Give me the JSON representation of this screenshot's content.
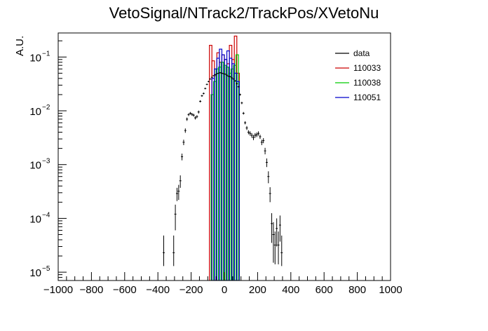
{
  "chart_data": {
    "type": "histogram",
    "title": "VetoSignal/NTrack2/TrackPos/XVetoNu",
    "ylabel": "A.U.",
    "xlabel": "",
    "xlim": [
      -1000,
      1000
    ],
    "ylim": [
      7e-06,
      0.28
    ],
    "yscale": "log",
    "xticks": [
      -1000,
      -800,
      -600,
      -400,
      -200,
      0,
      200,
      400,
      600,
      800,
      1000
    ],
    "xtick_labels": [
      "−1000",
      "−800",
      "−600",
      "−400",
      "−200",
      "0",
      "200",
      "400",
      "600",
      "800",
      "1000"
    ],
    "yticks": [
      1e-05,
      0.0001,
      0.001,
      0.01,
      0.1
    ],
    "ytick_labels": [
      {
        "base": "10",
        "exp": "−5"
      },
      {
        "base": "10",
        "exp": "−4"
      },
      {
        "base": "10",
        "exp": "−3"
      },
      {
        "base": "10",
        "exp": "−2"
      },
      {
        "base": "10",
        "exp": "−1"
      }
    ],
    "grid": false,
    "legend_position": "top-right",
    "legend": [
      {
        "label": "data",
        "color": "#000000"
      },
      {
        "label": "110033",
        "color": "#cc0000"
      },
      {
        "label": "110038",
        "color": "#00cc00"
      },
      {
        "label": "110051",
        "color": "#0000cc"
      }
    ],
    "series": [
      {
        "name": "data",
        "style": "points-with-errors",
        "color": "#000000",
        "points": [
          {
            "x": -365,
            "y": 2.3e-05,
            "yerr": [
              1e-05,
              2.5e-05
            ]
          },
          {
            "x": -305,
            "y": 2.3e-05,
            "yerr": [
              1e-05,
              2.5e-05
            ]
          },
          {
            "x": -295,
            "y": 0.00012,
            "yerr": [
              6e-05,
              6e-05
            ]
          },
          {
            "x": -285,
            "y": 0.00029,
            "yerr": [
              8e-05,
              8e-05
            ]
          },
          {
            "x": -275,
            "y": 0.00032,
            "yerr": [
              0.0001,
              0.0001
            ]
          },
          {
            "x": -265,
            "y": 0.0005,
            "yerr": [
              0.00013,
              0.00013
            ]
          },
          {
            "x": -255,
            "y": 0.0014,
            "yerr": [
              0.0002,
              0.0002
            ]
          },
          {
            "x": -245,
            "y": 0.0026,
            "yerr": [
              0.0003,
              0.0003
            ]
          },
          {
            "x": -235,
            "y": 0.0043,
            "yerr": [
              0.0004,
              0.0004
            ]
          },
          {
            "x": -225,
            "y": 0.007,
            "yerr": [
              0.0005,
              0.0005
            ]
          },
          {
            "x": -215,
            "y": 0.0085,
            "yerr": [
              0.0005,
              0.0005
            ]
          },
          {
            "x": -205,
            "y": 0.009,
            "yerr": [
              0.0005,
              0.0005
            ]
          },
          {
            "x": -195,
            "y": 0.0086,
            "yerr": [
              0.0005,
              0.0005
            ]
          },
          {
            "x": -185,
            "y": 0.0083,
            "yerr": [
              0.0005,
              0.0005
            ]
          },
          {
            "x": -175,
            "y": 0.0074,
            "yerr": [
              0.0005,
              0.0005
            ]
          },
          {
            "x": -165,
            "y": 0.0078,
            "yerr": [
              0.0005,
              0.0005
            ]
          },
          {
            "x": -155,
            "y": 0.0095,
            "yerr": [
              0.0006,
              0.0006
            ]
          },
          {
            "x": -145,
            "y": 0.015,
            "yerr": [
              0.0007,
              0.0007
            ]
          },
          {
            "x": -135,
            "y": 0.019,
            "yerr": [
              0.0008,
              0.0008
            ]
          },
          {
            "x": -125,
            "y": 0.021,
            "yerr": [
              0.0008,
              0.0008
            ]
          },
          {
            "x": -115,
            "y": 0.026,
            "yerr": [
              0.0009,
              0.0009
            ]
          },
          {
            "x": -105,
            "y": 0.031,
            "yerr": [
              0.001,
              0.001
            ]
          },
          {
            "x": -95,
            "y": 0.035,
            "yerr": [
              0.001,
              0.001
            ]
          },
          {
            "x": -85,
            "y": 0.039,
            "yerr": [
              0.001,
              0.001
            ]
          },
          {
            "x": -75,
            "y": 0.042,
            "yerr": [
              0.001,
              0.001
            ]
          },
          {
            "x": -65,
            "y": 0.045,
            "yerr": [
              0.001,
              0.001
            ]
          },
          {
            "x": -55,
            "y": 0.047,
            "yerr": [
              0.001,
              0.001
            ]
          },
          {
            "x": -45,
            "y": 0.049,
            "yerr": [
              0.001,
              0.001
            ]
          },
          {
            "x": -35,
            "y": 0.05,
            "yerr": [
              0.001,
              0.001
            ]
          },
          {
            "x": -25,
            "y": 0.051,
            "yerr": [
              0.001,
              0.001
            ]
          },
          {
            "x": -15,
            "y": 0.05,
            "yerr": [
              0.001,
              0.001
            ]
          },
          {
            "x": -5,
            "y": 0.049,
            "yerr": [
              0.001,
              0.001
            ]
          },
          {
            "x": 5,
            "y": 0.048,
            "yerr": [
              0.001,
              0.001
            ]
          },
          {
            "x": 15,
            "y": 0.046,
            "yerr": [
              0.001,
              0.001
            ]
          },
          {
            "x": 25,
            "y": 0.044,
            "yerr": [
              0.001,
              0.001
            ]
          },
          {
            "x": 35,
            "y": 0.043,
            "yerr": [
              0.001,
              0.001
            ]
          },
          {
            "x": 45,
            "y": 0.041,
            "yerr": [
              0.001,
              0.001
            ]
          },
          {
            "x": 55,
            "y": 0.039,
            "yerr": [
              0.001,
              0.001
            ]
          },
          {
            "x": 65,
            "y": 0.036,
            "yerr": [
              0.001,
              0.001
            ]
          },
          {
            "x": 75,
            "y": 0.032,
            "yerr": [
              0.001,
              0.001
            ]
          },
          {
            "x": 85,
            "y": 0.028,
            "yerr": [
              0.0009,
              0.0009
            ]
          },
          {
            "x": 95,
            "y": 0.02,
            "yerr": [
              0.0008,
              0.0008
            ]
          },
          {
            "x": 105,
            "y": 0.014,
            "yerr": [
              0.0007,
              0.0007
            ]
          },
          {
            "x": 115,
            "y": 0.009,
            "yerr": [
              0.0005,
              0.0005
            ]
          },
          {
            "x": 125,
            "y": 0.006,
            "yerr": [
              0.0004,
              0.0004
            ]
          },
          {
            "x": 135,
            "y": 0.0048,
            "yerr": [
              0.0004,
              0.0004
            ]
          },
          {
            "x": 145,
            "y": 0.004,
            "yerr": [
              0.00035,
              0.00035
            ]
          },
          {
            "x": 155,
            "y": 0.0038,
            "yerr": [
              0.00035,
              0.00035
            ]
          },
          {
            "x": 165,
            "y": 0.0035,
            "yerr": [
              0.00035,
              0.00035
            ]
          },
          {
            "x": 175,
            "y": 0.0032,
            "yerr": [
              0.00035,
              0.00035
            ]
          },
          {
            "x": 185,
            "y": 0.0035,
            "yerr": [
              0.00035,
              0.00035
            ]
          },
          {
            "x": 195,
            "y": 0.0036,
            "yerr": [
              0.00035,
              0.00035
            ]
          },
          {
            "x": 205,
            "y": 0.0038,
            "yerr": [
              0.00035,
              0.00035
            ]
          },
          {
            "x": 215,
            "y": 0.0033,
            "yerr": [
              0.0003,
              0.0003
            ]
          },
          {
            "x": 225,
            "y": 0.0026,
            "yerr": [
              0.0003,
              0.0003
            ]
          },
          {
            "x": 235,
            "y": 0.0028,
            "yerr": [
              0.0003,
              0.0003
            ]
          },
          {
            "x": 245,
            "y": 0.0018,
            "yerr": [
              0.00025,
              0.00025
            ]
          },
          {
            "x": 255,
            "y": 0.0011,
            "yerr": [
              0.0002,
              0.0002
            ]
          },
          {
            "x": 265,
            "y": 0.0006,
            "yerr": [
              0.00015,
              0.00015
            ]
          },
          {
            "x": 275,
            "y": 0.00029,
            "yerr": [
              9e-05,
              9e-05
            ]
          },
          {
            "x": 285,
            "y": 8e-05,
            "yerr": [
              4.5e-05,
              4.5e-05
            ]
          },
          {
            "x": 295,
            "y": 5e-05,
            "yerr": [
              3.5e-05,
              3.5e-05
            ]
          },
          {
            "x": 305,
            "y": 3.2e-05,
            "yerr": [
              1.8e-05,
              2.5e-05
            ]
          },
          {
            "x": 315,
            "y": 6.5e-05,
            "yerr": [
              3.5e-05,
              3.5e-05
            ]
          },
          {
            "x": 325,
            "y": 3.2e-05,
            "yerr": [
              1.8e-05,
              2.5e-05
            ]
          },
          {
            "x": 335,
            "y": 7.5e-05,
            "yerr": [
              3.8e-05,
              3.8e-05
            ]
          },
          {
            "x": 345,
            "y": 2.3e-05,
            "yerr": [
              1e-05,
              2.5e-05
            ]
          }
        ]
      },
      {
        "name": "110033",
        "style": "step",
        "color": "#cc0000",
        "bins": [
          {
            "x0": -90,
            "x1": -75,
            "y": 0.165
          },
          {
            "x0": -75,
            "x1": -60,
            "y": 0.085
          },
          {
            "x0": -60,
            "x1": -45,
            "y": 0.045
          },
          {
            "x0": -45,
            "x1": -30,
            "y": 0.12
          },
          {
            "x0": -30,
            "x1": -15,
            "y": 0.08
          },
          {
            "x0": -15,
            "x1": 0,
            "y": 0.11
          },
          {
            "x0": 0,
            "x1": 15,
            "y": 0.09
          },
          {
            "x0": 15,
            "x1": 30,
            "y": 0.075
          },
          {
            "x0": 30,
            "x1": 45,
            "y": 0.165
          },
          {
            "x0": 45,
            "x1": 60,
            "y": 0.09
          },
          {
            "x0": 60,
            "x1": 75,
            "y": 0.245
          },
          {
            "x0": 75,
            "x1": 90,
            "y": 0.05
          }
        ]
      },
      {
        "name": "110038",
        "style": "step",
        "color": "#00cc00",
        "bins": [
          {
            "x0": -80,
            "x1": -65,
            "y": 0.02
          },
          {
            "x0": -65,
            "x1": -50,
            "y": 0.035
          },
          {
            "x0": -50,
            "x1": -35,
            "y": 0.06
          },
          {
            "x0": -35,
            "x1": -20,
            "y": 0.065
          },
          {
            "x0": -20,
            "x1": -5,
            "y": 0.08
          },
          {
            "x0": -5,
            "x1": 10,
            "y": 0.07
          },
          {
            "x0": 10,
            "x1": 25,
            "y": 0.065
          },
          {
            "x0": 25,
            "x1": 40,
            "y": 0.05
          },
          {
            "x0": 40,
            "x1": 55,
            "y": 0.06
          },
          {
            "x0": 55,
            "x1": 70,
            "y": 0.07
          },
          {
            "x0": 70,
            "x1": 85,
            "y": 0.11
          }
        ]
      },
      {
        "name": "110051",
        "style": "step",
        "color": "#0000cc",
        "bins": [
          {
            "x0": -75,
            "x1": -60,
            "y": 0.04
          },
          {
            "x0": -60,
            "x1": -45,
            "y": 0.06
          },
          {
            "x0": -45,
            "x1": -30,
            "y": 0.095
          },
          {
            "x0": -30,
            "x1": -15,
            "y": 0.14
          },
          {
            "x0": -15,
            "x1": 0,
            "y": 0.11
          },
          {
            "x0": 0,
            "x1": 15,
            "y": 0.09
          },
          {
            "x0": 15,
            "x1": 30,
            "y": 0.13
          },
          {
            "x0": 30,
            "x1": 45,
            "y": 0.095
          },
          {
            "x0": 45,
            "x1": 60,
            "y": 0.075
          },
          {
            "x0": 60,
            "x1": 75,
            "y": 0.05
          },
          {
            "x0": 75,
            "x1": 90,
            "y": 0.035
          }
        ]
      }
    ]
  }
}
